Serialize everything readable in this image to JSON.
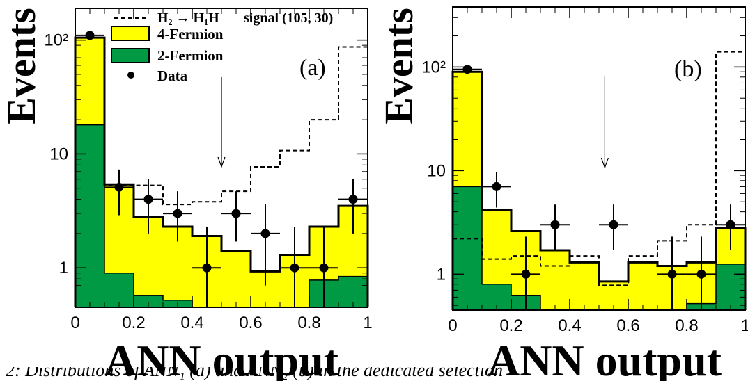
{
  "figure": {
    "ylabel": "Events",
    "xlabel": "ANN output",
    "caption": "2: Distributions of ANN₁ (a) and ANN₂ (b) in the dedicated selection",
    "legend": {
      "signal_label": "H₂ → H₁H",
      "signal_extra": "signal (105, 30)",
      "four_fermion": "4-Fermion",
      "two_fermion": "2-Fermion",
      "data": "Data"
    },
    "colors": {
      "four_fermion": "#ffff00",
      "two_fermion": "#009a44",
      "data": "#000000",
      "signal": "#000000"
    }
  },
  "chart_data": [
    {
      "type": "bar",
      "panel_label": "(a)",
      "x_edges": [
        0,
        0.1,
        0.2,
        0.3,
        0.4,
        0.5,
        0.6,
        0.7,
        0.8,
        0.9,
        1.0
      ],
      "xlim": [
        0,
        1
      ],
      "ylim": [
        0.45,
        190
      ],
      "yscale": "log",
      "xticks": [
        "0",
        "0.2",
        "0.4",
        "0.6",
        "0.8",
        "1"
      ],
      "yticks": [
        {
          "value": 1,
          "label": "1"
        },
        {
          "value": 10,
          "label": "10"
        },
        {
          "value": 100,
          "label": "10²"
        }
      ],
      "series": [
        {
          "name": "4-Fermion",
          "values": [
            105,
            5.4,
            2.8,
            2.3,
            1.9,
            1.4,
            0.93,
            1.3,
            2.3,
            3.5
          ]
        },
        {
          "name": "2-Fermion",
          "values": [
            18,
            0.9,
            0.57,
            0.52,
            0.45,
            0.45,
            0.45,
            0.45,
            0.78,
            0.84
          ]
        },
        {
          "name": "H₂ → H₁H signal (105, 30)",
          "values": [
            105,
            5.3,
            5.3,
            3.6,
            3.8,
            4.7,
            7.7,
            10.7,
            20,
            87
          ]
        }
      ],
      "data_points": [
        {
          "x": 0.05,
          "y": 110,
          "err_low": 10,
          "err_high": 10
        },
        {
          "x": 0.15,
          "y": 5.1,
          "err_low": 2.2,
          "err_high": 2.2
        },
        {
          "x": 0.25,
          "y": 4.0,
          "err_low": 2.0,
          "err_high": 2.0
        },
        {
          "x": 0.35,
          "y": 3.0,
          "err_low": 1.3,
          "err_high": 1.7
        },
        {
          "x": 0.45,
          "y": 1.0,
          "err_low": 0.55,
          "err_high": 1.3
        },
        {
          "x": 0.55,
          "y": 3.0,
          "err_low": 1.3,
          "err_high": 1.7
        },
        {
          "x": 0.65,
          "y": 2.0,
          "err_low": 1.3,
          "err_high": 1.6
        },
        {
          "x": 0.75,
          "y": 1.0,
          "err_low": 0.55,
          "err_high": 1.3
        },
        {
          "x": 0.85,
          "y": 1.0,
          "err_low": 0.55,
          "err_high": 1.3
        },
        {
          "x": 0.95,
          "y": 4.0,
          "err_low": 2.0,
          "err_high": 2.0
        }
      ],
      "cut_arrow_x": 0.5
    },
    {
      "type": "bar",
      "panel_label": "(b)",
      "x_edges": [
        0,
        0.1,
        0.2,
        0.3,
        0.4,
        0.5,
        0.6,
        0.7,
        0.8,
        0.9,
        1.0
      ],
      "xlim": [
        0,
        1
      ],
      "ylim": [
        0.45,
        380
      ],
      "yscale": "log",
      "xticks": [
        "0",
        "0.2",
        "0.4",
        "0.6",
        "0.8",
        "1"
      ],
      "yticks": [
        {
          "value": 1,
          "label": "1"
        },
        {
          "value": 10,
          "label": "10"
        },
        {
          "value": 100,
          "label": "10²"
        }
      ],
      "series": [
        {
          "name": "4-Fermion",
          "values": [
            90,
            4.2,
            2.6,
            1.7,
            1.3,
            0.85,
            1.3,
            1.2,
            1.3,
            2.8
          ]
        },
        {
          "name": "2-Fermion",
          "values": [
            7.0,
            0.8,
            0.62,
            0.45,
            0.45,
            0.45,
            0.45,
            0.45,
            0.52,
            1.25
          ]
        },
        {
          "name": "H₂ → H₁H signal (105, 30)",
          "values": [
            2.2,
            1.4,
            1.5,
            1.2,
            1.5,
            0.78,
            1.5,
            2.1,
            3.0,
            140
          ]
        }
      ],
      "data_points": [
        {
          "x": 0.05,
          "y": 95,
          "err_low": 9.5,
          "err_high": 9.5
        },
        {
          "x": 0.15,
          "y": 7.0,
          "err_low": 2.6,
          "err_high": 2.6
        },
        {
          "x": 0.25,
          "y": 1.0,
          "err_low": 0.55,
          "err_high": 1.3
        },
        {
          "x": 0.35,
          "y": 3.0,
          "err_low": 1.3,
          "err_high": 1.7
        },
        {
          "x": 0.55,
          "y": 3.0,
          "err_low": 1.3,
          "err_high": 1.7
        },
        {
          "x": 0.75,
          "y": 1.0,
          "err_low": 0.55,
          "err_high": 1.3
        },
        {
          "x": 0.85,
          "y": 1.0,
          "err_low": 0.55,
          "err_high": 1.3
        },
        {
          "x": 0.95,
          "y": 3.0,
          "err_low": 1.3,
          "err_high": 1.7
        }
      ],
      "cut_arrow_x": 0.52
    }
  ]
}
